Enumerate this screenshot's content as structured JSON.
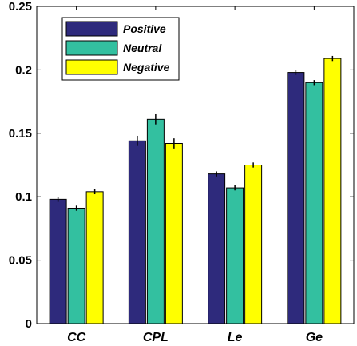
{
  "chart_data": {
    "type": "bar",
    "title": "",
    "xlabel": "",
    "ylabel": "",
    "categories": [
      "CC",
      "CPL",
      "Le",
      "Ge"
    ],
    "ylim": [
      0,
      0.25
    ],
    "yticks": [
      "0",
      "0.05",
      "0.1",
      "0.15",
      "0.2",
      "0.25"
    ],
    "ytick_values": [
      0,
      0.05,
      0.1,
      0.15,
      0.2,
      0.25
    ],
    "legend_position": "top-left",
    "grid": false,
    "series": [
      {
        "name": "Positive",
        "color": "#2e2a7c",
        "values": [
          0.098,
          0.144,
          0.118,
          0.198
        ],
        "errors": [
          0.002,
          0.004,
          0.002,
          0.002
        ]
      },
      {
        "name": "Neutral",
        "color": "#33c0a0",
        "values": [
          0.091,
          0.161,
          0.107,
          0.19
        ],
        "errors": [
          0.002,
          0.004,
          0.002,
          0.002
        ]
      },
      {
        "name": "Negative",
        "color": "#ffff00",
        "values": [
          0.104,
          0.142,
          0.125,
          0.209
        ],
        "errors": [
          0.002,
          0.004,
          0.002,
          0.002
        ]
      }
    ]
  }
}
